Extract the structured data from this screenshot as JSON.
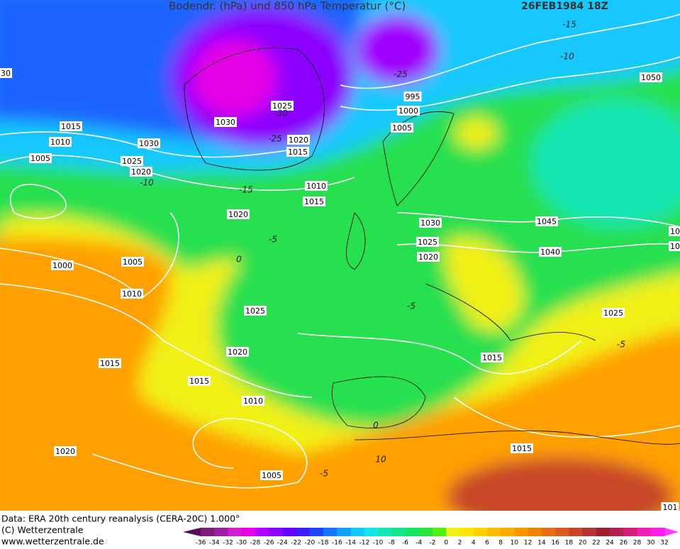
{
  "header": {
    "title": "Bodendr. (hPa) und 850 hPa Temperatur (°C)",
    "date": "26FEB1984 18Z"
  },
  "isobar_labels": [
    "30",
    "1015",
    "1010",
    "1005",
    "1025",
    "1020",
    "1030",
    "1030",
    "1025",
    "1020",
    "1015",
    "1010",
    "1015",
    "1020",
    "995",
    "1000",
    "1005",
    "1050",
    "1030",
    "1025",
    "1020",
    "1045",
    "1040",
    "10",
    "10",
    "1000",
    "1005",
    "1010",
    "1025",
    "1020",
    "1015",
    "1015",
    "1010",
    "1015",
    "1025",
    "1020",
    "1005",
    "1015",
    "101"
  ],
  "temperature_labels": [
    "-15",
    "-10",
    "-25",
    "-30",
    "-25",
    "-10",
    "-15",
    "-5",
    "0",
    "-5",
    "-5",
    "0",
    "10",
    "-5"
  ],
  "footer": {
    "source": "Data: ERA 20th century reanalysis (CERA-20C) 1.000°",
    "copyright": "(C) Wetterzentrale",
    "url": "www.wetterzentrale.de"
  },
  "colorbar": {
    "ticks": [
      -36,
      -34,
      -32,
      -30,
      -28,
      -26,
      -24,
      -22,
      -20,
      -18,
      -16,
      -14,
      -12,
      -10,
      -8,
      -6,
      -4,
      -2,
      0,
      2,
      4,
      6,
      8,
      10,
      12,
      14,
      16,
      18,
      20,
      22,
      24,
      26,
      28,
      30,
      32
    ],
    "colors": [
      "#7a1e7a",
      "#a01ea0",
      "#d21ed2",
      "#e600e6",
      "#b400ff",
      "#8c00ff",
      "#6400ff",
      "#3c1eff",
      "#1e46ff",
      "#1478ff",
      "#14a0ff",
      "#14c8ff",
      "#14e6e6",
      "#14e6b4",
      "#14e68c",
      "#14e664",
      "#28e63c",
      "#50f014",
      "#f0f014",
      "#ffe600",
      "#ffd200",
      "#ffbe00",
      "#ffaa00",
      "#ff9600",
      "#f08200",
      "#e66e14",
      "#dc5a1e",
      "#c84628",
      "#b43232",
      "#a01e32",
      "#b41e50",
      "#d21e78",
      "#f01eb4",
      "#ff1ee6"
    ],
    "low_color": "#5a0a5a",
    "high_color": "#ff3cff"
  }
}
